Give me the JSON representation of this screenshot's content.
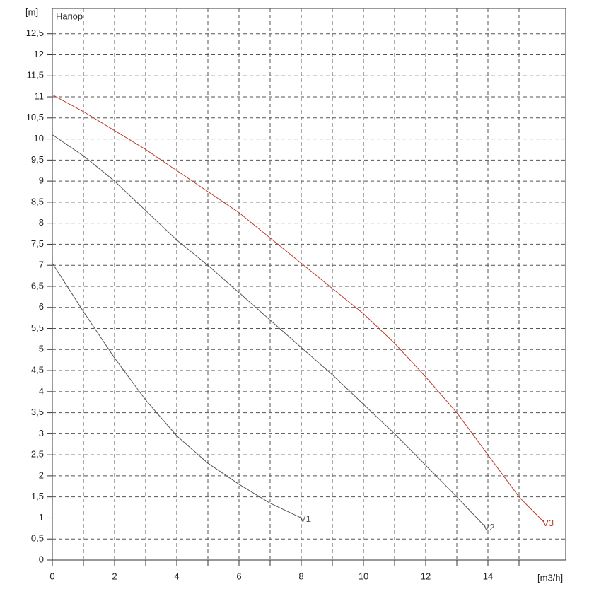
{
  "chart_data": {
    "type": "line",
    "y_unit": "[m]",
    "x_unit": "[m3/h]",
    "annotation": "Напор",
    "xlim": [
      0,
      16.5
    ],
    "ylim": [
      0,
      13.1
    ],
    "xticks": [
      0,
      2,
      4,
      6,
      8,
      10,
      12,
      14
    ],
    "xminor": [
      1,
      3,
      5,
      7,
      9,
      11,
      13,
      15
    ],
    "yticks": [
      0,
      {
        "value": 0.5,
        "label": "0,5"
      },
      1,
      {
        "value": 1.5,
        "label": "1,5"
      },
      2,
      {
        "value": 2.5,
        "label": "2,5"
      },
      3,
      {
        "value": 3.5,
        "label": "3,5"
      },
      4,
      {
        "value": 4.5,
        "label": "4,5"
      },
      5,
      {
        "value": 5.5,
        "label": "5,5"
      },
      6,
      {
        "value": 6.5,
        "label": "6,5"
      },
      7,
      {
        "value": 7.5,
        "label": "7,5"
      },
      8,
      {
        "value": 8.5,
        "label": "8,5"
      },
      9,
      {
        "value": 9.5,
        "label": "9,5"
      },
      10,
      {
        "value": 10.5,
        "label": "10,5"
      },
      11,
      {
        "value": 11.5,
        "label": "11,5"
      },
      12,
      {
        "value": 12.5,
        "label": "12,5"
      }
    ],
    "grid": true,
    "series": [
      {
        "name": "V1",
        "color": "#555555",
        "x": [
          0,
          1,
          2,
          3,
          4,
          5,
          6,
          7,
          8
        ],
        "values": [
          7.05,
          5.9,
          4.8,
          3.8,
          2.95,
          2.3,
          1.8,
          1.35,
          1.0
        ]
      },
      {
        "name": "V2",
        "color": "#555555",
        "x": [
          0,
          1,
          2,
          3,
          4,
          5,
          6,
          7,
          8,
          9,
          10,
          11,
          12,
          13,
          13.9
        ],
        "values": [
          10.1,
          9.6,
          9.0,
          8.3,
          7.6,
          7.0,
          6.35,
          5.7,
          5.05,
          4.4,
          3.7,
          3.0,
          2.25,
          1.5,
          0.8
        ]
      },
      {
        "name": "V3",
        "color": "#c0392b",
        "x": [
          0,
          1,
          2,
          3,
          4,
          5,
          6,
          7,
          8,
          9,
          10,
          11,
          12,
          13,
          14,
          15,
          15.8
        ],
        "values": [
          11.05,
          10.65,
          10.2,
          9.75,
          9.25,
          8.75,
          8.25,
          7.65,
          7.05,
          6.45,
          5.85,
          5.15,
          4.35,
          3.5,
          2.5,
          1.5,
          0.9
        ]
      }
    ]
  }
}
